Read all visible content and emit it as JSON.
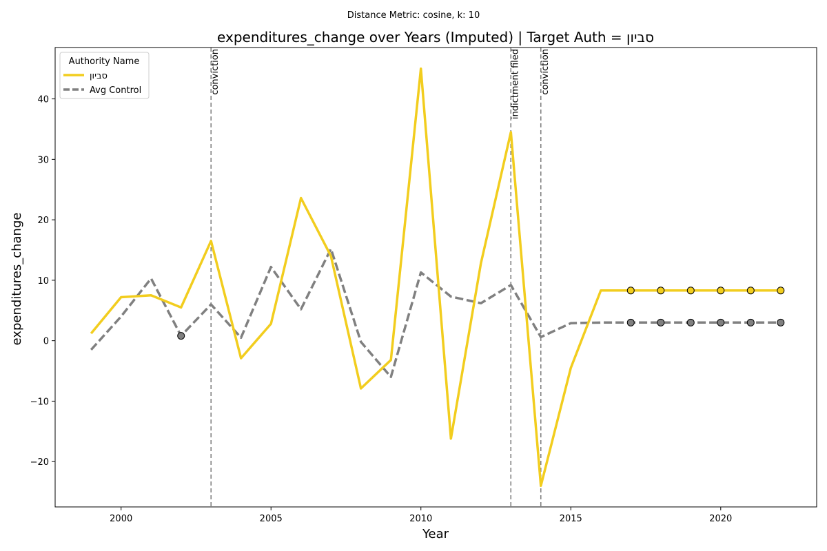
{
  "chart_data": {
    "type": "line",
    "suptitle": "Distance Metric: cosine, k: 10",
    "title": "expenditures_change over Years (Imputed) | Target Auth = סביון",
    "xlabel": "Year",
    "ylabel": "expenditures_change",
    "xlim": [
      1997.8,
      2023.2
    ],
    "ylim": [
      -27.5,
      48.5
    ],
    "xticks": [
      2000,
      2005,
      2010,
      2015,
      2020
    ],
    "yticks": [
      -20,
      -10,
      0,
      10,
      20,
      30,
      40
    ],
    "grid": false,
    "legend": {
      "title": "Authority Name",
      "placement": "top-left"
    },
    "series": [
      {
        "name": "סביון",
        "color": "#f2cd1e",
        "style": "solid",
        "x": [
          1999,
          2000,
          2001,
          2002,
          2003,
          2004,
          2005,
          2006,
          2007,
          2008,
          2009,
          2010,
          2011,
          2012,
          2013,
          2014,
          2015,
          2016,
          2017,
          2018,
          2019,
          2020,
          2021,
          2022
        ],
        "y": [
          1.2,
          7.2,
          7.5,
          5.5,
          16.5,
          -2.9,
          2.8,
          23.6,
          14.0,
          -7.9,
          -3.2,
          45.0,
          -16.2,
          12.8,
          34.5,
          -24.0,
          -4.5,
          8.3,
          8.3,
          8.3,
          8.3,
          8.3,
          8.3,
          8.3
        ],
        "imputed_x": [
          2017,
          2018,
          2019,
          2020,
          2021,
          2022
        ]
      },
      {
        "name": "Avg Control",
        "color": "#808080",
        "style": "dashed",
        "x": [
          1999,
          2000,
          2001,
          2002,
          2003,
          2004,
          2005,
          2006,
          2007,
          2008,
          2009,
          2010,
          2011,
          2012,
          2013,
          2014,
          2015,
          2016,
          2017,
          2018,
          2019,
          2020,
          2021,
          2022
        ],
        "y": [
          -1.5,
          4.0,
          10.3,
          0.8,
          6.0,
          0.5,
          12.2,
          5.2,
          15.2,
          -0.2,
          -6.0,
          11.3,
          7.3,
          6.2,
          9.2,
          0.6,
          2.9,
          3.0,
          3.0,
          3.0,
          3.0,
          3.0,
          3.0,
          3.0
        ],
        "imputed_x": [
          2002,
          2017,
          2018,
          2019,
          2020,
          2021,
          2022
        ]
      }
    ],
    "events": [
      {
        "x": 2003,
        "label": "conviction"
      },
      {
        "x": 2013,
        "label": "indictment filed"
      },
      {
        "x": 2014,
        "label": "conviction"
      }
    ]
  }
}
